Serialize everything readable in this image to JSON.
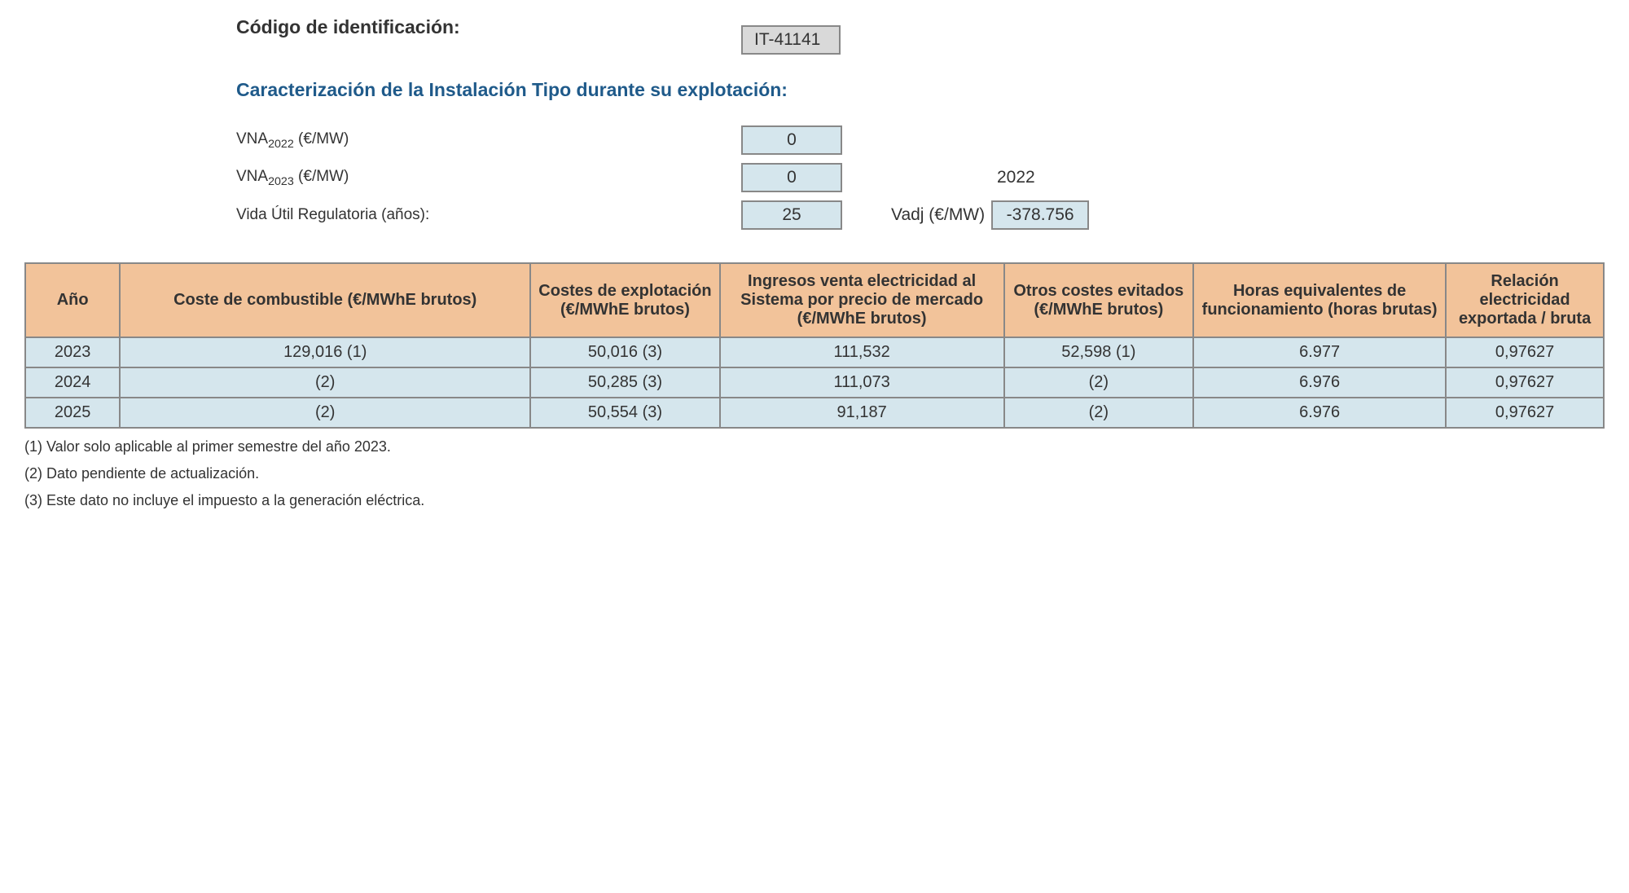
{
  "header": {
    "codigo_label": "Código de identificación:",
    "codigo_value": "IT-41141",
    "caracterizacion_title": "Caracterización de la Instalación Tipo durante su explotación:",
    "vna2022_label_prefix": "VNA",
    "vna2022_sub": "2022",
    "vna2022_unit": " (€/MW)",
    "vna2022_value": "0",
    "vna2023_label_prefix": "VNA",
    "vna2023_sub": "2023",
    "vna2023_unit": " (€/MW)",
    "vna2023_value": "0",
    "year_right": "2022",
    "vida_util_label": "Vida Útil Regulatoria (años):",
    "vida_util_value": "25",
    "vadj_label": "Vadj (€/MW)",
    "vadj_value": "-378.756"
  },
  "table": {
    "columns": [
      "Año",
      "Coste de combustible (€/MWhE brutos)",
      "Costes de explotación (€/MWhE brutos)",
      "Ingresos venta electricidad al Sistema por precio de mercado (€/MWhE brutos)",
      "Otros costes evitados (€/MWhE brutos)",
      "Horas equivalentes de funcionamiento (horas brutas)",
      "Relación electricidad exportada / bruta"
    ],
    "col_widths_pct": [
      6,
      26,
      12,
      18,
      12,
      16,
      10
    ],
    "rows": [
      [
        "2023",
        "129,016 (1)",
        "50,016 (3)",
        "111,532",
        "52,598 (1)",
        "6.977",
        "0,97627"
      ],
      [
        "2024",
        "(2)",
        "50,285 (3)",
        "111,073",
        "(2)",
        "6.976",
        "0,97627"
      ],
      [
        "2025",
        "(2)",
        "50,554 (3)",
        "91,187",
        "(2)",
        "6.976",
        "0,97627"
      ]
    ],
    "header_bg": "#f2c39a",
    "cell_bg": "#d5e6ed",
    "border_color": "#888"
  },
  "footnotes": [
    "(1) Valor solo aplicable al primer semestre del año 2023.",
    "(2) Dato pendiente de actualización.",
    "(3) Este dato no incluye el impuesto a la generación eléctrica."
  ]
}
